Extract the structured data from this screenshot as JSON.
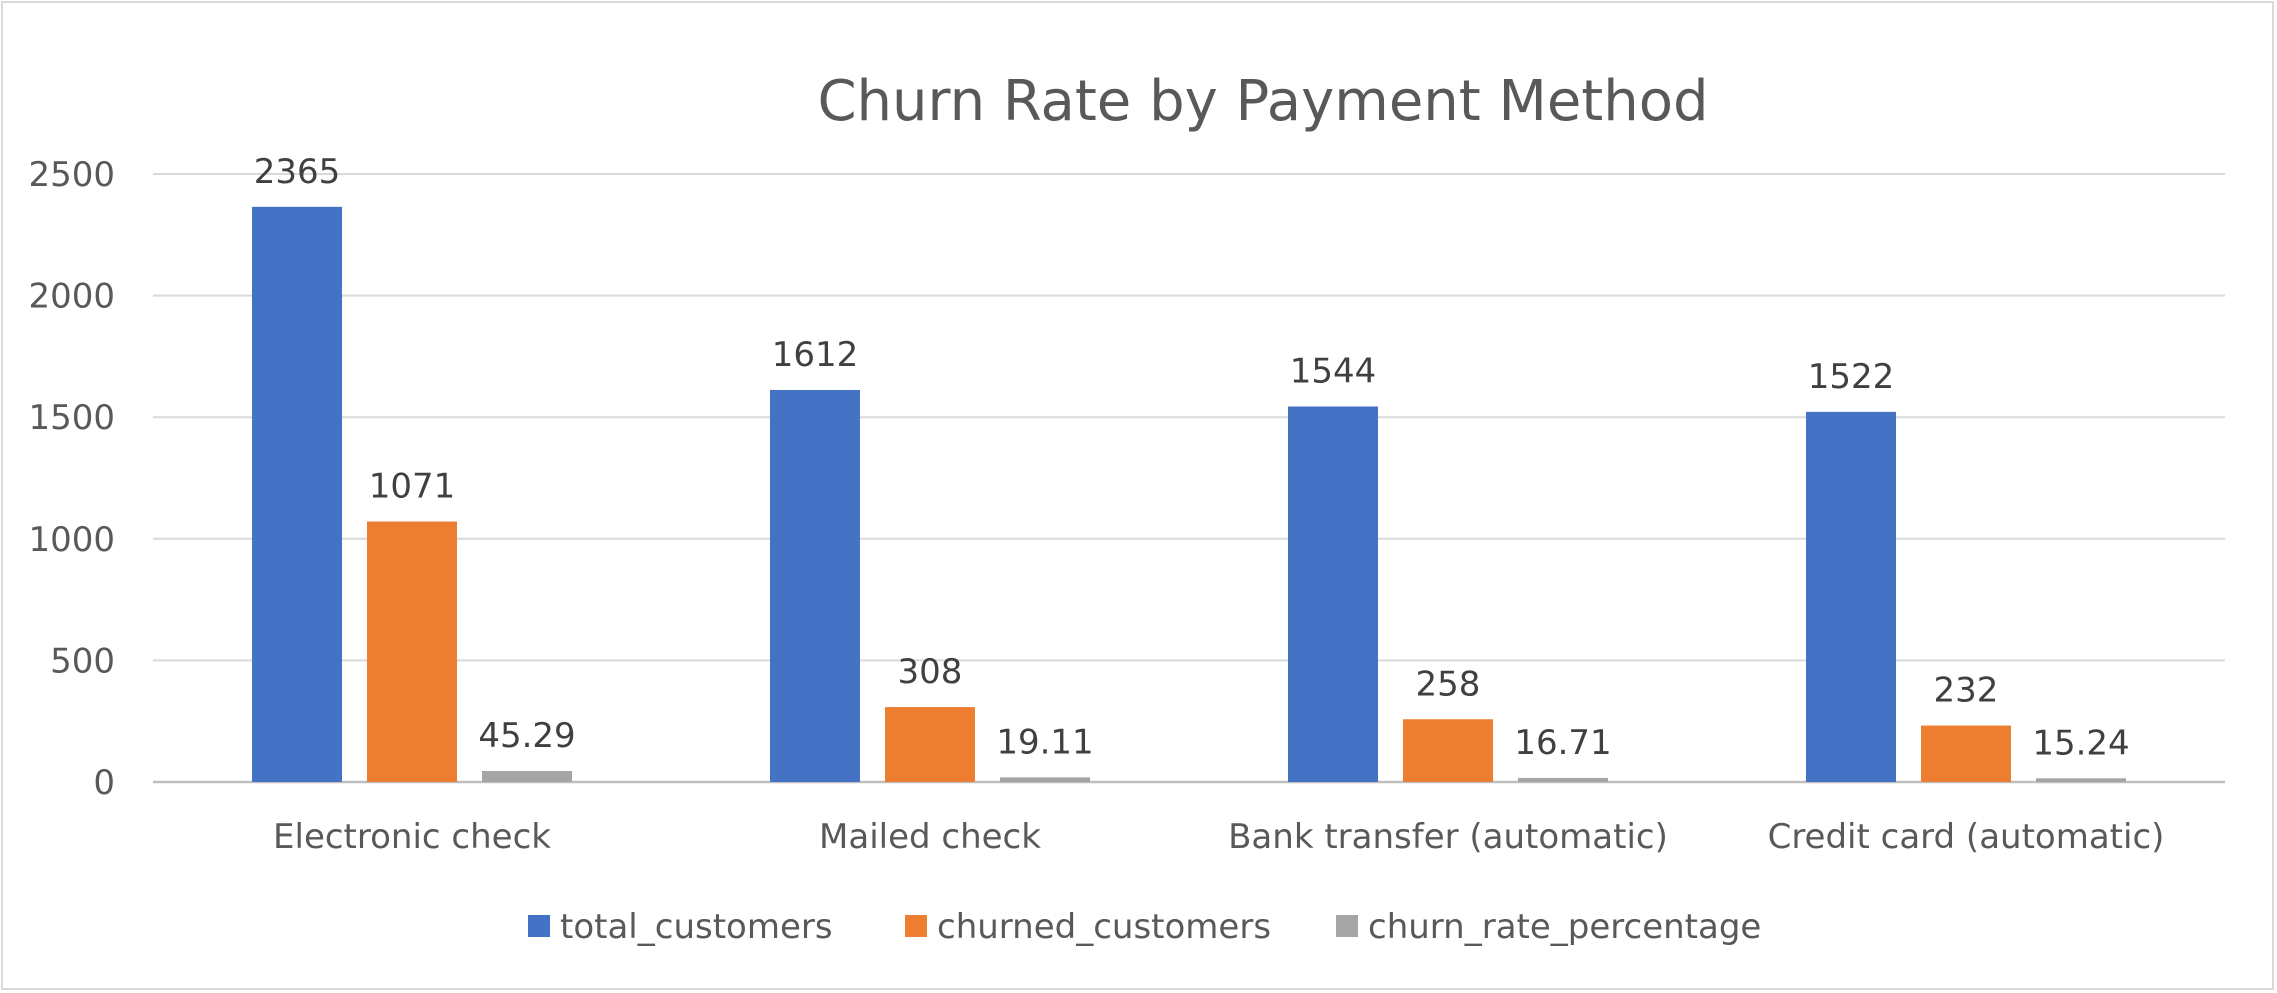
{
  "chart_data": {
    "type": "bar",
    "title": "Churn Rate by Payment Method",
    "xlabel": "",
    "ylabel": "",
    "categories": [
      "Electronic check",
      "Mailed check",
      "Bank transfer (automatic)",
      "Credit card (automatic)"
    ],
    "series": [
      {
        "name": "total_customers",
        "values": [
          2365,
          1612,
          1544,
          1522
        ],
        "labels": [
          "2365",
          "1612",
          "1544",
          "1522"
        ],
        "color": "#4472c4"
      },
      {
        "name": "churned_customers",
        "values": [
          1071,
          308,
          258,
          232
        ],
        "labels": [
          "1071",
          "308",
          "258",
          "232"
        ],
        "color": "#ed7d31"
      },
      {
        "name": "churn_rate_percentage",
        "values": [
          45.29,
          19.11,
          16.71,
          15.24
        ],
        "labels": [
          "45.29",
          "19.11",
          "16.71",
          "15.24"
        ],
        "color": "#a5a5a5"
      }
    ],
    "ylim": [
      0,
      2500
    ],
    "yticks": [
      "0",
      "500",
      "1000",
      "1500",
      "2000",
      "2500"
    ],
    "grid": true,
    "legend_position": "bottom"
  }
}
